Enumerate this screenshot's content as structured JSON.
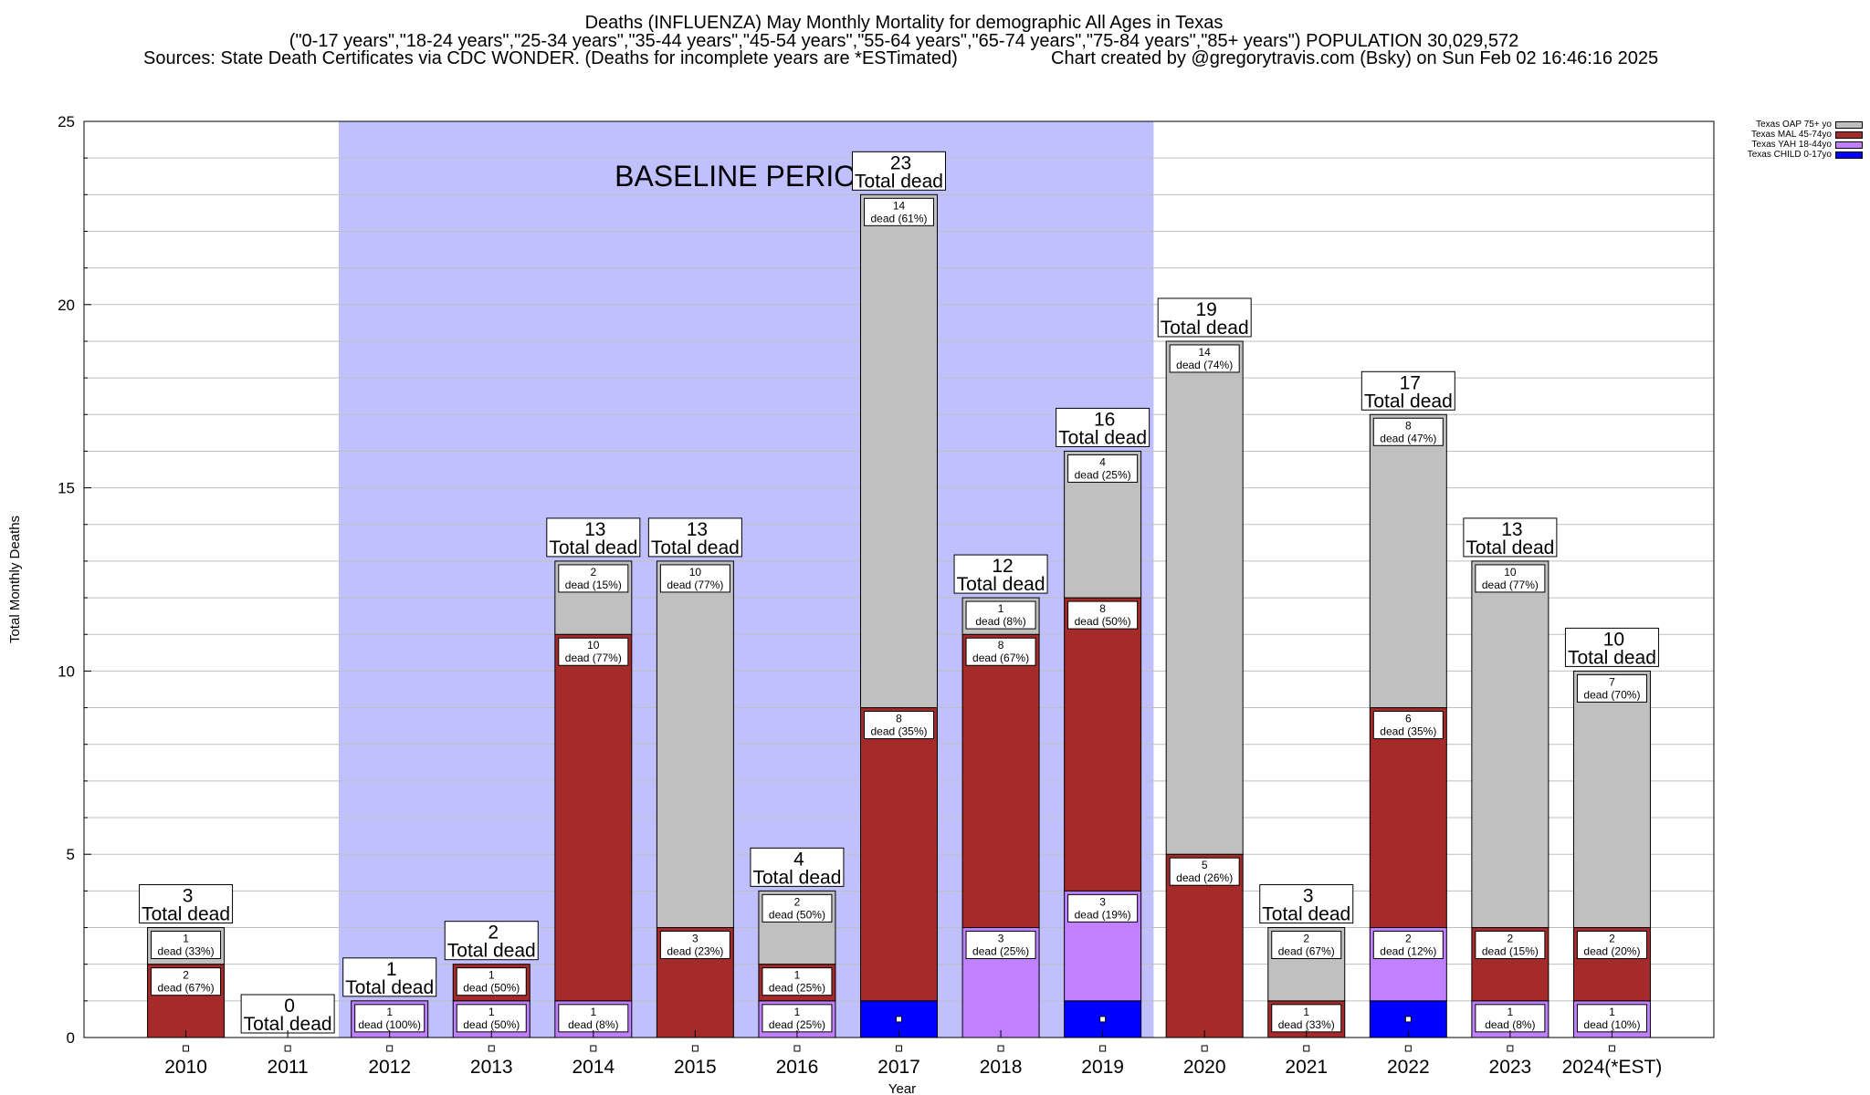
{
  "header": {
    "title_line1": "Deaths (INFLUENZA) May Monthly Mortality for demographic All Ages in Texas",
    "title_line2": "(\"0-17 years\",\"18-24 years\",\"25-34 years\",\"35-44 years\",\"45-54 years\",\"55-64 years\",\"65-74 years\",\"75-84 years\",\"85+ years\") POPULATION 30,029,572",
    "sources": "Sources: State Death Certificates via CDC WONDER. (Deaths for incomplete years are *ESTimated)",
    "credit": "Chart created by @gregorytravis.com (Bsky) on Sun Feb 02 16:46:16 2025"
  },
  "legend": [
    {
      "label": "Texas OAP 75+ yo",
      "color": "#c0c0c0"
    },
    {
      "label": "Texas MAL 45-74yo",
      "color": "#a52a2a"
    },
    {
      "label": "Texas YAH 18-44yo",
      "color": "#c080ff"
    },
    {
      "label": "Texas CHILD 0-17yo",
      "color": "#0000ff"
    }
  ],
  "chart_data": {
    "type": "bar",
    "stacked": true,
    "xlabel": "Year",
    "ylabel": "Total Monthly Deaths",
    "ylim": [
      0,
      25
    ],
    "yticks": [
      0,
      5,
      10,
      15,
      20,
      25
    ],
    "grid": true,
    "legend_position": "top-right",
    "baseline": {
      "label": "BASELINE PERIOD",
      "from": "2012",
      "to": "2019",
      "color": "#c0c0ff"
    },
    "categories": [
      "2010",
      "2011",
      "2012",
      "2013",
      "2014",
      "2015",
      "2016",
      "2017",
      "2018",
      "2019",
      "2020",
      "2021",
      "2022",
      "2023",
      "2024(*EST)"
    ],
    "total_label": "Total dead",
    "series": [
      {
        "name": "Texas CHILD 0-17yo",
        "color": "#0000ff",
        "values": [
          0,
          0,
          0,
          0,
          0,
          0,
          0,
          1,
          0,
          1,
          0,
          0,
          1,
          0,
          0
        ],
        "labels": [
          "",
          "",
          "",
          "",
          "",
          "",
          "",
          "",
          "",
          "",
          "",
          "",
          "",
          "",
          ""
        ]
      },
      {
        "name": "Texas YAH 18-44yo",
        "color": "#c080ff",
        "values": [
          0,
          0,
          1,
          1,
          1,
          0,
          1,
          0,
          3,
          3,
          0,
          0,
          2,
          1,
          1
        ],
        "labels": [
          "",
          "",
          "dead (100%)",
          "dead (50%)",
          "dead (8%)",
          "",
          "dead (25%)",
          "",
          "dead (25%)",
          "dead (19%)",
          "",
          "",
          "dead (12%)",
          "dead (8%)",
          "dead (10%)"
        ]
      },
      {
        "name": "Texas MAL 45-74yo",
        "color": "#a52a2a",
        "values": [
          2,
          0,
          0,
          1,
          10,
          3,
          1,
          8,
          8,
          8,
          5,
          1,
          6,
          2,
          2
        ],
        "labels": [
          "dead (67%)",
          "",
          "",
          "dead (50%)",
          "dead (77%)",
          "dead (23%)",
          "dead (25%)",
          "dead (35%)",
          "dead (67%)",
          "dead (50%)",
          "dead (26%)",
          "dead (33%)",
          "dead (35%)",
          "dead (15%)",
          "dead (20%)"
        ]
      },
      {
        "name": "Texas OAP 75+ yo",
        "color": "#c0c0c0",
        "values": [
          1,
          0,
          0,
          0,
          2,
          10,
          2,
          14,
          1,
          4,
          14,
          2,
          8,
          10,
          7
        ],
        "labels": [
          "dead (33%)",
          "",
          "",
          "",
          "dead (15%)",
          "dead (77%)",
          "dead (50%)",
          "dead (61%)",
          "dead (8%)",
          "dead (25%)",
          "dead (74%)",
          "dead (67%)",
          "dead (47%)",
          "dead (77%)",
          "dead (70%)"
        ]
      }
    ],
    "totals": [
      3,
      0,
      1,
      2,
      13,
      13,
      4,
      23,
      12,
      16,
      19,
      3,
      17,
      13,
      10
    ]
  }
}
